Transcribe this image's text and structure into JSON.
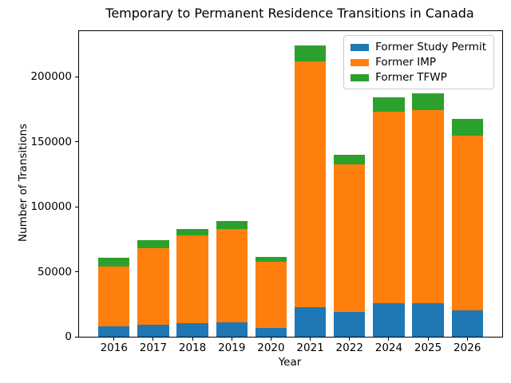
{
  "chart_data": {
    "type": "bar",
    "stacked": true,
    "title": "Temporary to Permanent Residence Transitions in Canada",
    "xlabel": "Year",
    "ylabel": "Number of Transitions",
    "categories": [
      "2016",
      "2017",
      "2018",
      "2019",
      "2020",
      "2021",
      "2022",
      "2024",
      "2025",
      "2026"
    ],
    "series": [
      {
        "name": "Former Study Permit",
        "color": "#1f77b4",
        "values": [
          8000,
          9000,
          10500,
          11000,
          7000,
          22500,
          19000,
          25500,
          25500,
          20500
        ]
      },
      {
        "name": "Former IMP",
        "color": "#ff7f0e",
        "values": [
          46000,
          59000,
          67500,
          72000,
          50500,
          189000,
          113500,
          147500,
          148500,
          134000
        ]
      },
      {
        "name": "Former TFWP",
        "color": "#2ca02c",
        "values": [
          7000,
          6500,
          5000,
          6000,
          4000,
          12500,
          7500,
          11000,
          13000,
          13000
        ]
      }
    ],
    "totals": [
      61000,
      74500,
      83000,
      89000,
      61500,
      224000,
      140000,
      184000,
      187000,
      167500
    ],
    "ylim": [
      0,
      235000
    ],
    "yticks": [
      0,
      50000,
      100000,
      150000,
      200000
    ],
    "legend_position": "upper right",
    "grid": false,
    "bar_width_fraction": 0.8
  }
}
